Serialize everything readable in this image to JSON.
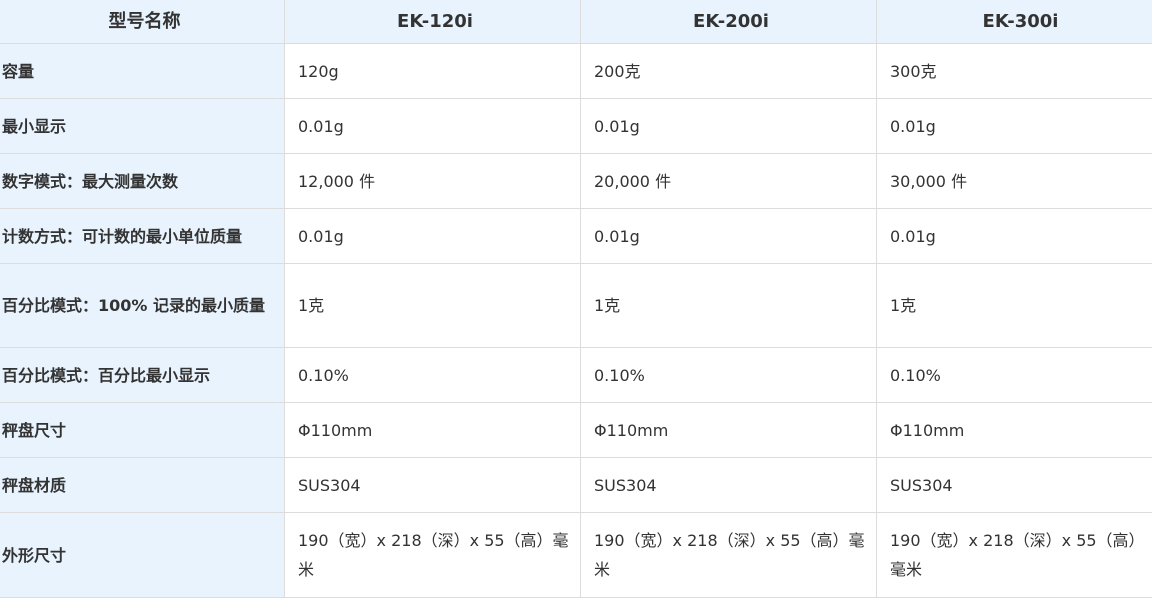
{
  "header": [
    "型号名称",
    "EK-120i",
    "EK-200i",
    "EK-300i"
  ],
  "rows": [
    {
      "label": "容量",
      "values": [
        "120g",
        "200克",
        "300克"
      ]
    },
    {
      "label": "最小显示",
      "values": [
        "0.01g",
        "0.01g",
        "0.01g"
      ]
    },
    {
      "label": "数字模式：最大测量次数",
      "values": [
        "12,000 件",
        "20,000 件",
        "30,000 件"
      ]
    },
    {
      "label": "计数方式：可计数的最小单位质量",
      "values": [
        "0.01g",
        "0.01g",
        "0.01g"
      ]
    },
    {
      "label": "百分比模式：100% 记录的最小质量",
      "values": [
        "1克",
        "1克",
        "1克"
      ]
    },
    {
      "label": "百分比模式：百分比最小显示",
      "values": [
        "0.10%",
        "0.10%",
        "0.10%"
      ]
    },
    {
      "label": "秤盘尺寸",
      "values": [
        "Φ110mm",
        "Φ110mm",
        "Φ110mm"
      ]
    },
    {
      "label": "秤盘材质",
      "values": [
        "SUS304",
        "SUS304",
        "SUS304"
      ]
    },
    {
      "label": "外形尺寸",
      "values": [
        "190（宽）x 218（深）x 55（高）毫米",
        "190（宽）x 218（深）x 55（高）毫米",
        "190（宽）x 218（深）x 55（高）毫米"
      ]
    }
  ]
}
